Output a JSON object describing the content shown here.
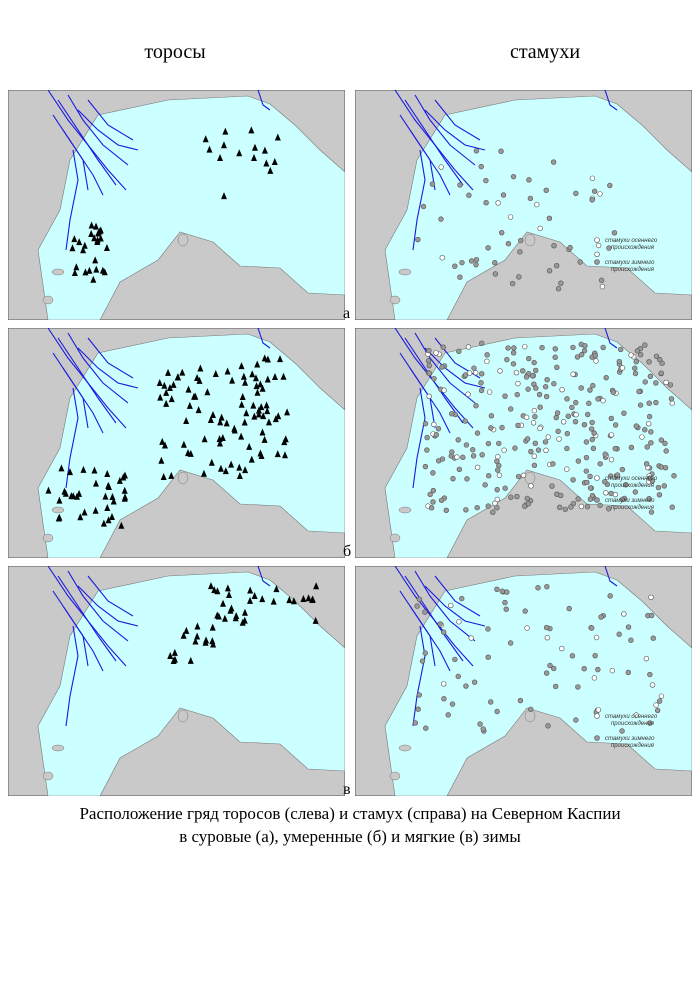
{
  "header": {
    "left": "торосы",
    "right": "стамухи"
  },
  "panels": [
    {
      "letter": "а"
    },
    {
      "letter": "б"
    },
    {
      "letter": "в"
    }
  ],
  "legend": {
    "autumn": [
      "стамухи осеннего",
      "происхождения"
    ],
    "winter": [
      "стамухи зимнего",
      "происхождения"
    ]
  },
  "caption": [
    "Расположение гряд торосов (слева) и стамух (справа) на Северном Каспии",
    "в суровые (а), умеренные (б) и мягкие (в) зимы"
  ]
}
